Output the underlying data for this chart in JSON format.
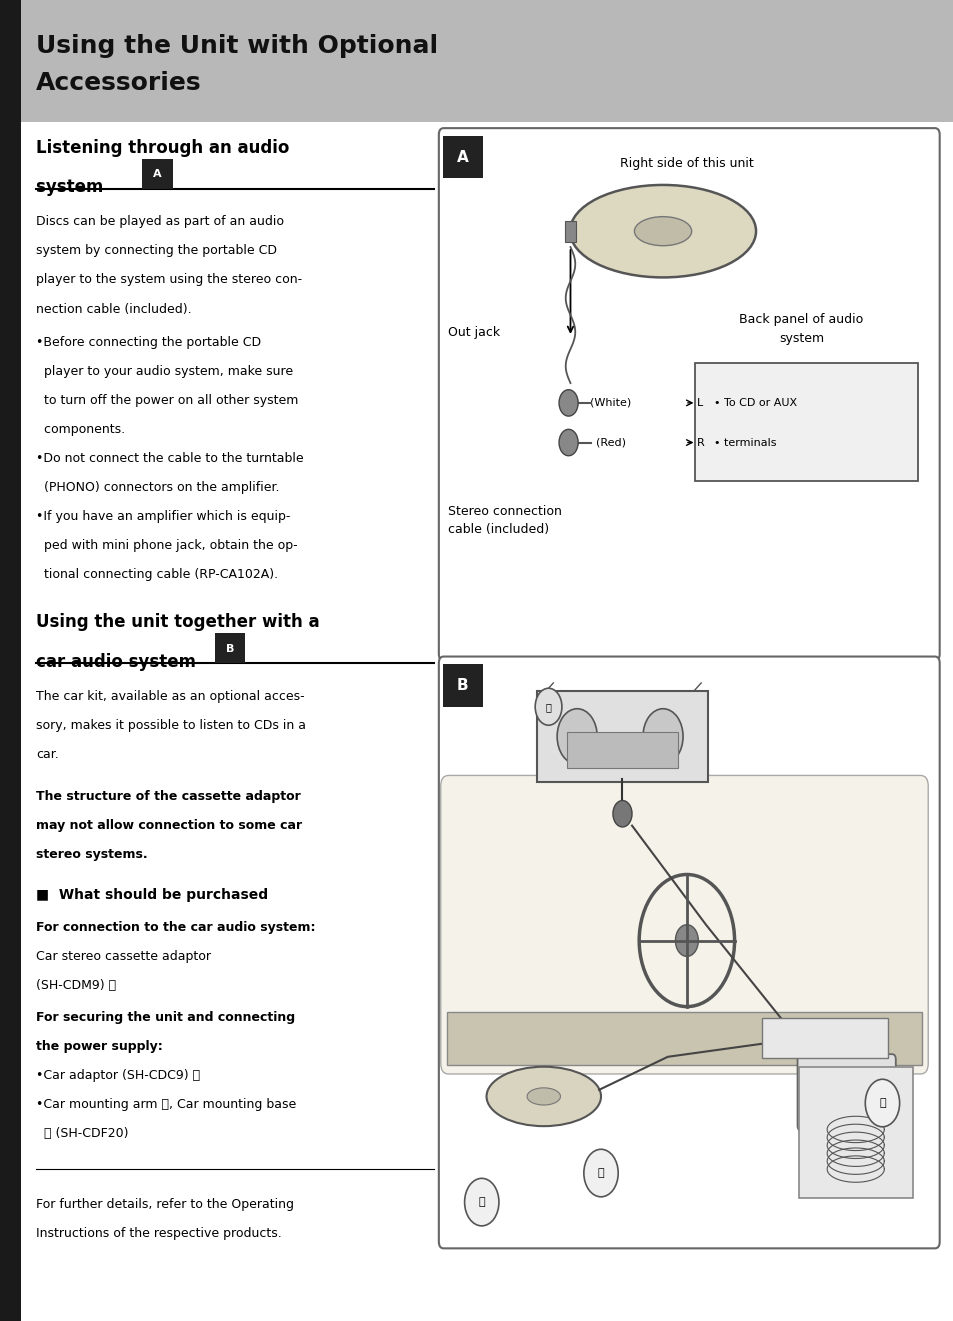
{
  "page_bg": "#ffffff",
  "header_bg": "#b8b8b8",
  "header_text_line1": "Using the Unit with Optional",
  "header_text_line2": "Accessories",
  "header_text_color": "#111111",
  "section1_title_line1": "Listening through an audio",
  "section1_title_line2": "system",
  "section1_body": [
    "Discs can be played as part of an audio",
    "system by connecting the portable CD",
    "player to the system using the stereo con-",
    "nection cable (included)."
  ],
  "section1_bullets": [
    [
      "•Before connecting the portable CD",
      "  player to your audio system, make sure",
      "  to turn off the power on all other system",
      "  components."
    ],
    [
      "•Do not connect the cable to the turntable",
      "  (PHONO) connectors on the amplifier."
    ],
    [
      "•If you have an amplifier which is equip-",
      "  ped with mini phone jack, obtain the op-",
      "  tional connecting cable (RP-CA102A)."
    ]
  ],
  "section2_title_line1": "Using the unit together with a",
  "section2_title_line2": "car audio system",
  "section2_intro": [
    "The car kit, available as an optional acces-",
    "sory, makes it possible to listen to CDs in a",
    "car."
  ],
  "section2_bold_warn": [
    "The structure of the cassette adaptor",
    "may not allow connection to some car",
    "stereo systems."
  ],
  "section2_purchase_head": "■  What should be purchased",
  "section2_for1": "For connection to the car audio system:",
  "section2_prod1a": "Car stereo cassette adaptor",
  "section2_prod1b": "(SH-CDM9) Ⓐ",
  "section2_for2a": "For securing the unit and connecting",
  "section2_for2b": "the power supply:",
  "section2_prod2a": "•Car adaptor (SH-CDC9) Ⓑ",
  "section2_prod2b": "•Car mounting arm Ⓒ, Car mounting base",
  "section2_prod2c": "  Ⓓ (SH-CDF20)",
  "footer1": "For further details, refer to the Operating",
  "footer2": "Instructions of the respective products.",
  "diag_A_right_side": "Right side of this unit",
  "diag_A_out_jack": "Out jack",
  "diag_A_back_panel": "Back panel of audio",
  "diag_A_system": "system",
  "diag_A_white": "(White)",
  "diag_A_L": "L",
  "diag_A_red": "(Red)",
  "diag_A_R": "R",
  "diag_A_to_cd": "• To CD or AUX",
  "diag_A_terminals": "• terminals",
  "diag_A_stereo": "Stereo connection",
  "diag_A_cable": "cable (included)"
}
